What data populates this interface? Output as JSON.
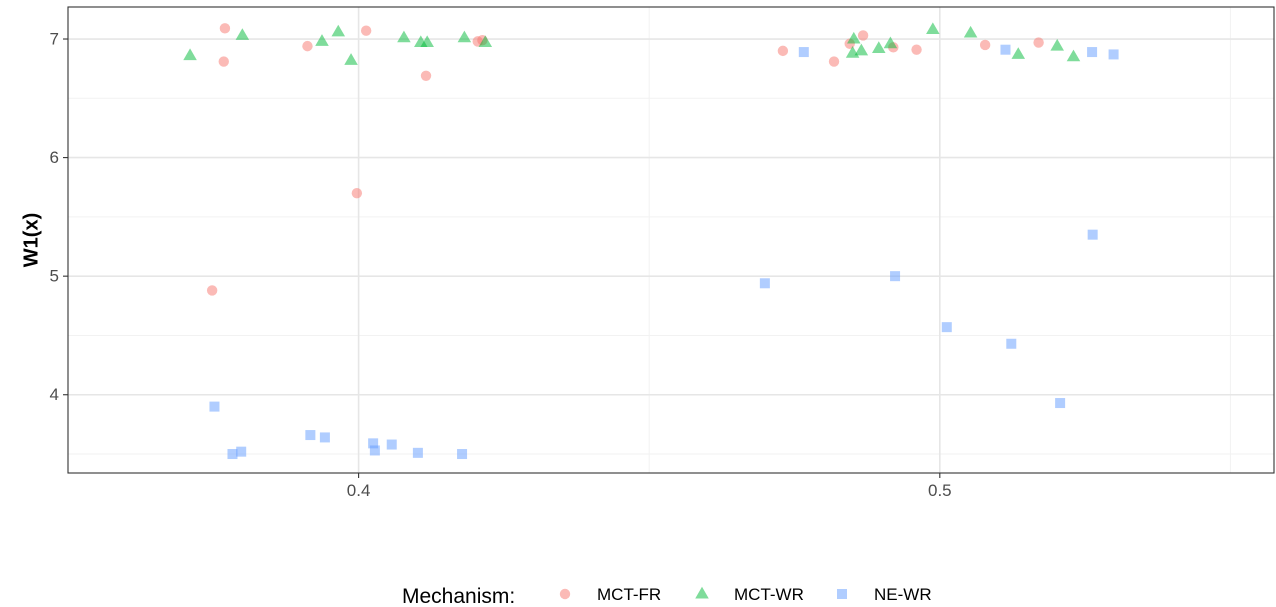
{
  "chart_data": {
    "type": "scatter",
    "title": "",
    "xlabel": "",
    "ylabel": "W1(x)",
    "xlim": [
      0.35,
      0.5575
    ],
    "ylim": [
      3.34,
      7.27
    ],
    "x_ticks": [
      0.4,
      0.5
    ],
    "x_tick_labels": [
      "0.4",
      "0.5"
    ],
    "x_minor_ticks": [
      0.35,
      0.45,
      0.55
    ],
    "y_ticks": [
      4,
      5,
      6,
      7
    ],
    "y_tick_labels": [
      "4",
      "5",
      "6",
      "7"
    ],
    "y_minor_ticks": [
      3.5,
      4.5,
      5.5,
      6.5
    ],
    "grid": true,
    "legend": {
      "title": "Mechanism:",
      "position": "bottom"
    },
    "series": [
      {
        "name": "MCT-FR",
        "color": "#F8766D",
        "shape": "circle",
        "points": [
          [
            0.377,
            7.09
          ],
          [
            0.3768,
            6.81
          ],
          [
            0.3912,
            6.94
          ],
          [
            0.4013,
            7.07
          ],
          [
            0.4116,
            6.69
          ],
          [
            0.3997,
            5.7
          ],
          [
            0.3748,
            4.88
          ],
          [
            0.4205,
            6.98
          ],
          [
            0.4213,
            6.99
          ],
          [
            0.473,
            6.9
          ],
          [
            0.4818,
            6.81
          ],
          [
            0.4845,
            6.96
          ],
          [
            0.4868,
            7.03
          ],
          [
            0.492,
            6.93
          ],
          [
            0.496,
            6.91
          ],
          [
            0.5078,
            6.95
          ],
          [
            0.517,
            6.97
          ]
        ]
      },
      {
        "name": "MCT-WR",
        "color": "#00BA38",
        "shape": "triangle",
        "points": [
          [
            0.371,
            6.86
          ],
          [
            0.38,
            7.03
          ],
          [
            0.3937,
            6.98
          ],
          [
            0.3965,
            7.06
          ],
          [
            0.3987,
            6.82
          ],
          [
            0.4078,
            7.01
          ],
          [
            0.4107,
            6.97
          ],
          [
            0.4118,
            6.97
          ],
          [
            0.4182,
            7.01
          ],
          [
            0.4218,
            6.97
          ],
          [
            0.485,
            6.88
          ],
          [
            0.4852,
            7.0
          ],
          [
            0.4865,
            6.9
          ],
          [
            0.4895,
            6.92
          ],
          [
            0.4915,
            6.96
          ],
          [
            0.4988,
            7.08
          ],
          [
            0.5053,
            7.05
          ],
          [
            0.5135,
            6.87
          ],
          [
            0.5202,
            6.94
          ],
          [
            0.523,
            6.85
          ]
        ]
      },
      {
        "name": "NE-WR",
        "color": "#619CFF",
        "shape": "square",
        "points": [
          [
            0.3752,
            3.9
          ],
          [
            0.3798,
            3.52
          ],
          [
            0.3783,
            3.5
          ],
          [
            0.3917,
            3.66
          ],
          [
            0.3942,
            3.64
          ],
          [
            0.4025,
            3.59
          ],
          [
            0.4028,
            3.53
          ],
          [
            0.4057,
            3.58
          ],
          [
            0.4102,
            3.51
          ],
          [
            0.4178,
            3.5
          ],
          [
            0.4766,
            6.89
          ],
          [
            0.5113,
            6.91
          ],
          [
            0.5262,
            6.89
          ],
          [
            0.5299,
            6.87
          ],
          [
            0.4699,
            4.94
          ],
          [
            0.4923,
            5.0
          ],
          [
            0.5012,
            4.57
          ],
          [
            0.5123,
            4.43
          ],
          [
            0.5207,
            3.93
          ],
          [
            0.5263,
            5.35
          ]
        ]
      }
    ]
  }
}
